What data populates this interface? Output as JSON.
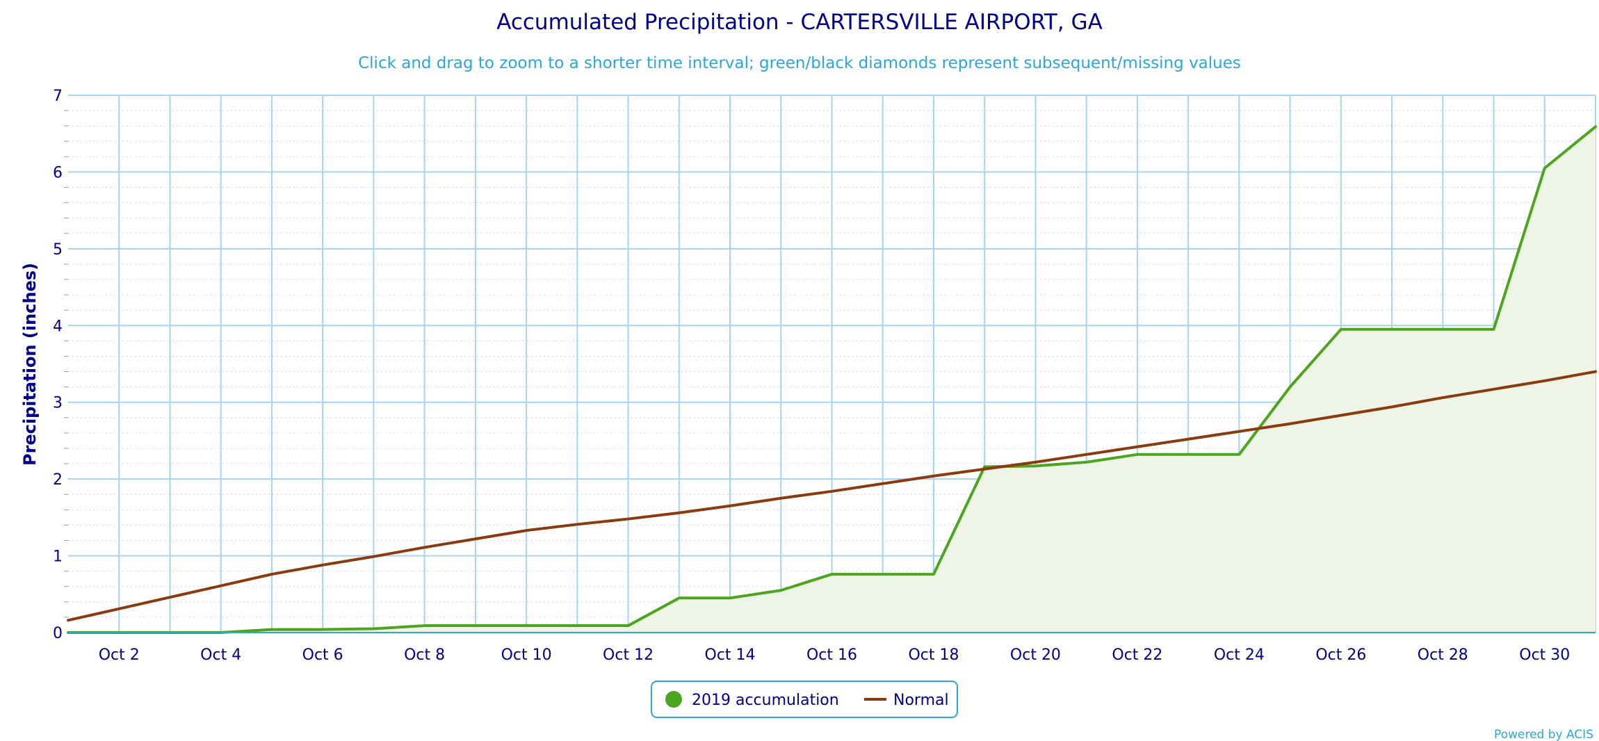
{
  "chart_data": {
    "type": "line",
    "title": "Accumulated Precipitation - CARTERSVILLE AIRPORT, GA",
    "subtitle": "Click and drag to zoom to a shorter time interval; green/black diamonds represent subsequent/missing values",
    "ylabel": "Precipitation (inches)",
    "xlabel": "",
    "ylim": [
      0,
      7
    ],
    "xlim": [
      1,
      31
    ],
    "grid": true,
    "legend_position": "bottom-center",
    "x_tick_values": [
      2,
      4,
      6,
      8,
      10,
      12,
      14,
      16,
      18,
      20,
      22,
      24,
      26,
      28,
      30
    ],
    "x_tick_labels": [
      "Oct 2",
      "Oct 4",
      "Oct 6",
      "Oct 8",
      "Oct 10",
      "Oct 12",
      "Oct 14",
      "Oct 16",
      "Oct 18",
      "Oct 20",
      "Oct 22",
      "Oct 24",
      "Oct 26",
      "Oct 28",
      "Oct 30"
    ],
    "y_tick_values": [
      0,
      1,
      2,
      3,
      4,
      5,
      6,
      7
    ],
    "y_tick_labels": [
      "0",
      "1",
      "2",
      "3",
      "4",
      "5",
      "6",
      "7"
    ],
    "x": [
      1,
      2,
      3,
      4,
      5,
      6,
      7,
      8,
      9,
      10,
      11,
      12,
      13,
      14,
      15,
      16,
      17,
      18,
      19,
      20,
      21,
      22,
      23,
      24,
      25,
      26,
      27,
      28,
      29,
      30,
      31
    ],
    "series": [
      {
        "name": "2019 accumulation",
        "color": "#4CA51E",
        "fill_color": "#EEF5E6",
        "values": [
          0.0,
          0.0,
          0.0,
          0.0,
          0.04,
          0.04,
          0.05,
          0.09,
          0.09,
          0.09,
          0.09,
          0.09,
          0.45,
          0.45,
          0.55,
          0.76,
          0.76,
          0.76,
          2.16,
          2.17,
          2.22,
          2.32,
          2.32,
          2.32,
          3.2,
          3.95,
          3.95,
          3.95,
          3.95,
          6.05,
          6.59
        ]
      },
      {
        "name": "Normal",
        "color": "#8B3A0E",
        "values": [
          0.16,
          0.31,
          0.46,
          0.61,
          0.76,
          0.88,
          0.99,
          1.11,
          1.22,
          1.33,
          1.41,
          1.48,
          1.56,
          1.65,
          1.75,
          1.84,
          1.94,
          2.04,
          2.13,
          2.22,
          2.32,
          2.42,
          2.52,
          2.62,
          2.72,
          2.83,
          2.94,
          3.06,
          3.17,
          3.28,
          3.4
        ]
      }
    ],
    "credits": "Powered by ACIS"
  }
}
